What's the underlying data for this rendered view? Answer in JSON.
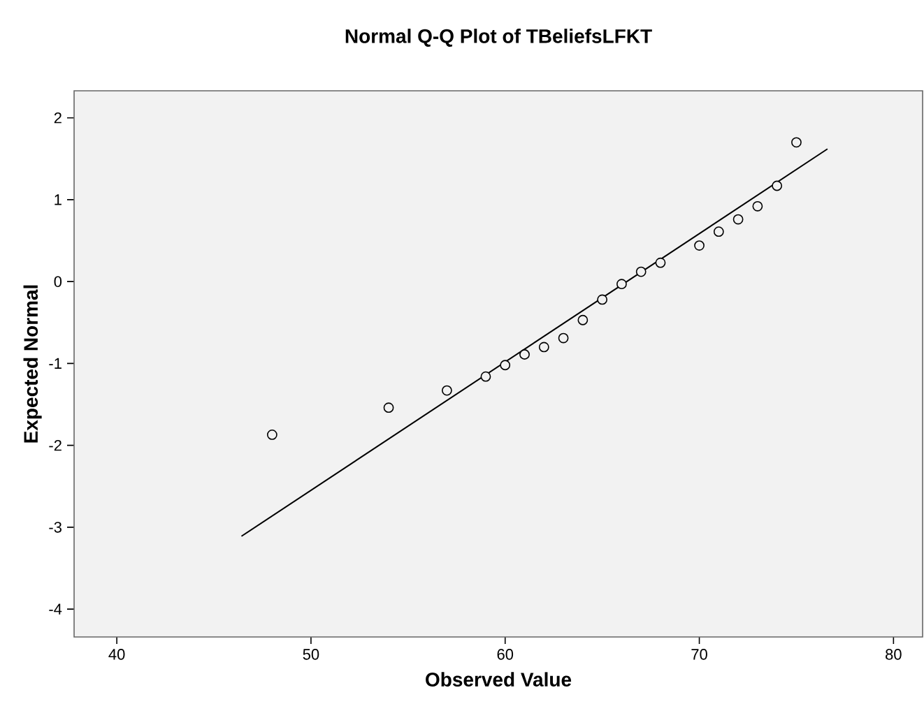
{
  "chart_data": {
    "type": "scatter",
    "title": "Normal Q-Q Plot of TBeliefsLFKT",
    "xlabel": "Observed Value",
    "ylabel": "Expected Normal",
    "xlim": [
      37.8,
      81.5
    ],
    "ylim": [
      -4.34,
      2.33
    ],
    "xticks": [
      40,
      50,
      60,
      70,
      80
    ],
    "yticks": [
      -4,
      -3,
      -2,
      -1,
      0,
      1,
      2
    ],
    "series": [
      {
        "marker": "circle",
        "color": "#000000",
        "x": [
          48,
          54,
          57,
          59,
          60,
          61,
          62,
          63,
          64,
          65,
          66,
          67,
          68,
          70,
          71,
          72,
          73,
          74,
          75
        ],
        "values": [
          -1.87,
          -1.54,
          -1.33,
          -1.16,
          -1.02,
          -0.89,
          -0.8,
          -0.69,
          -0.47,
          -0.22,
          -0.03,
          0.12,
          0.23,
          0.44,
          0.61,
          0.76,
          0.92,
          1.17,
          1.7
        ]
      },
      {
        "type": "line",
        "marker": "none",
        "color": "#000000",
        "x": [
          46.42,
          76.6
        ],
        "values": [
          -3.11,
          1.62
        ]
      }
    ]
  }
}
